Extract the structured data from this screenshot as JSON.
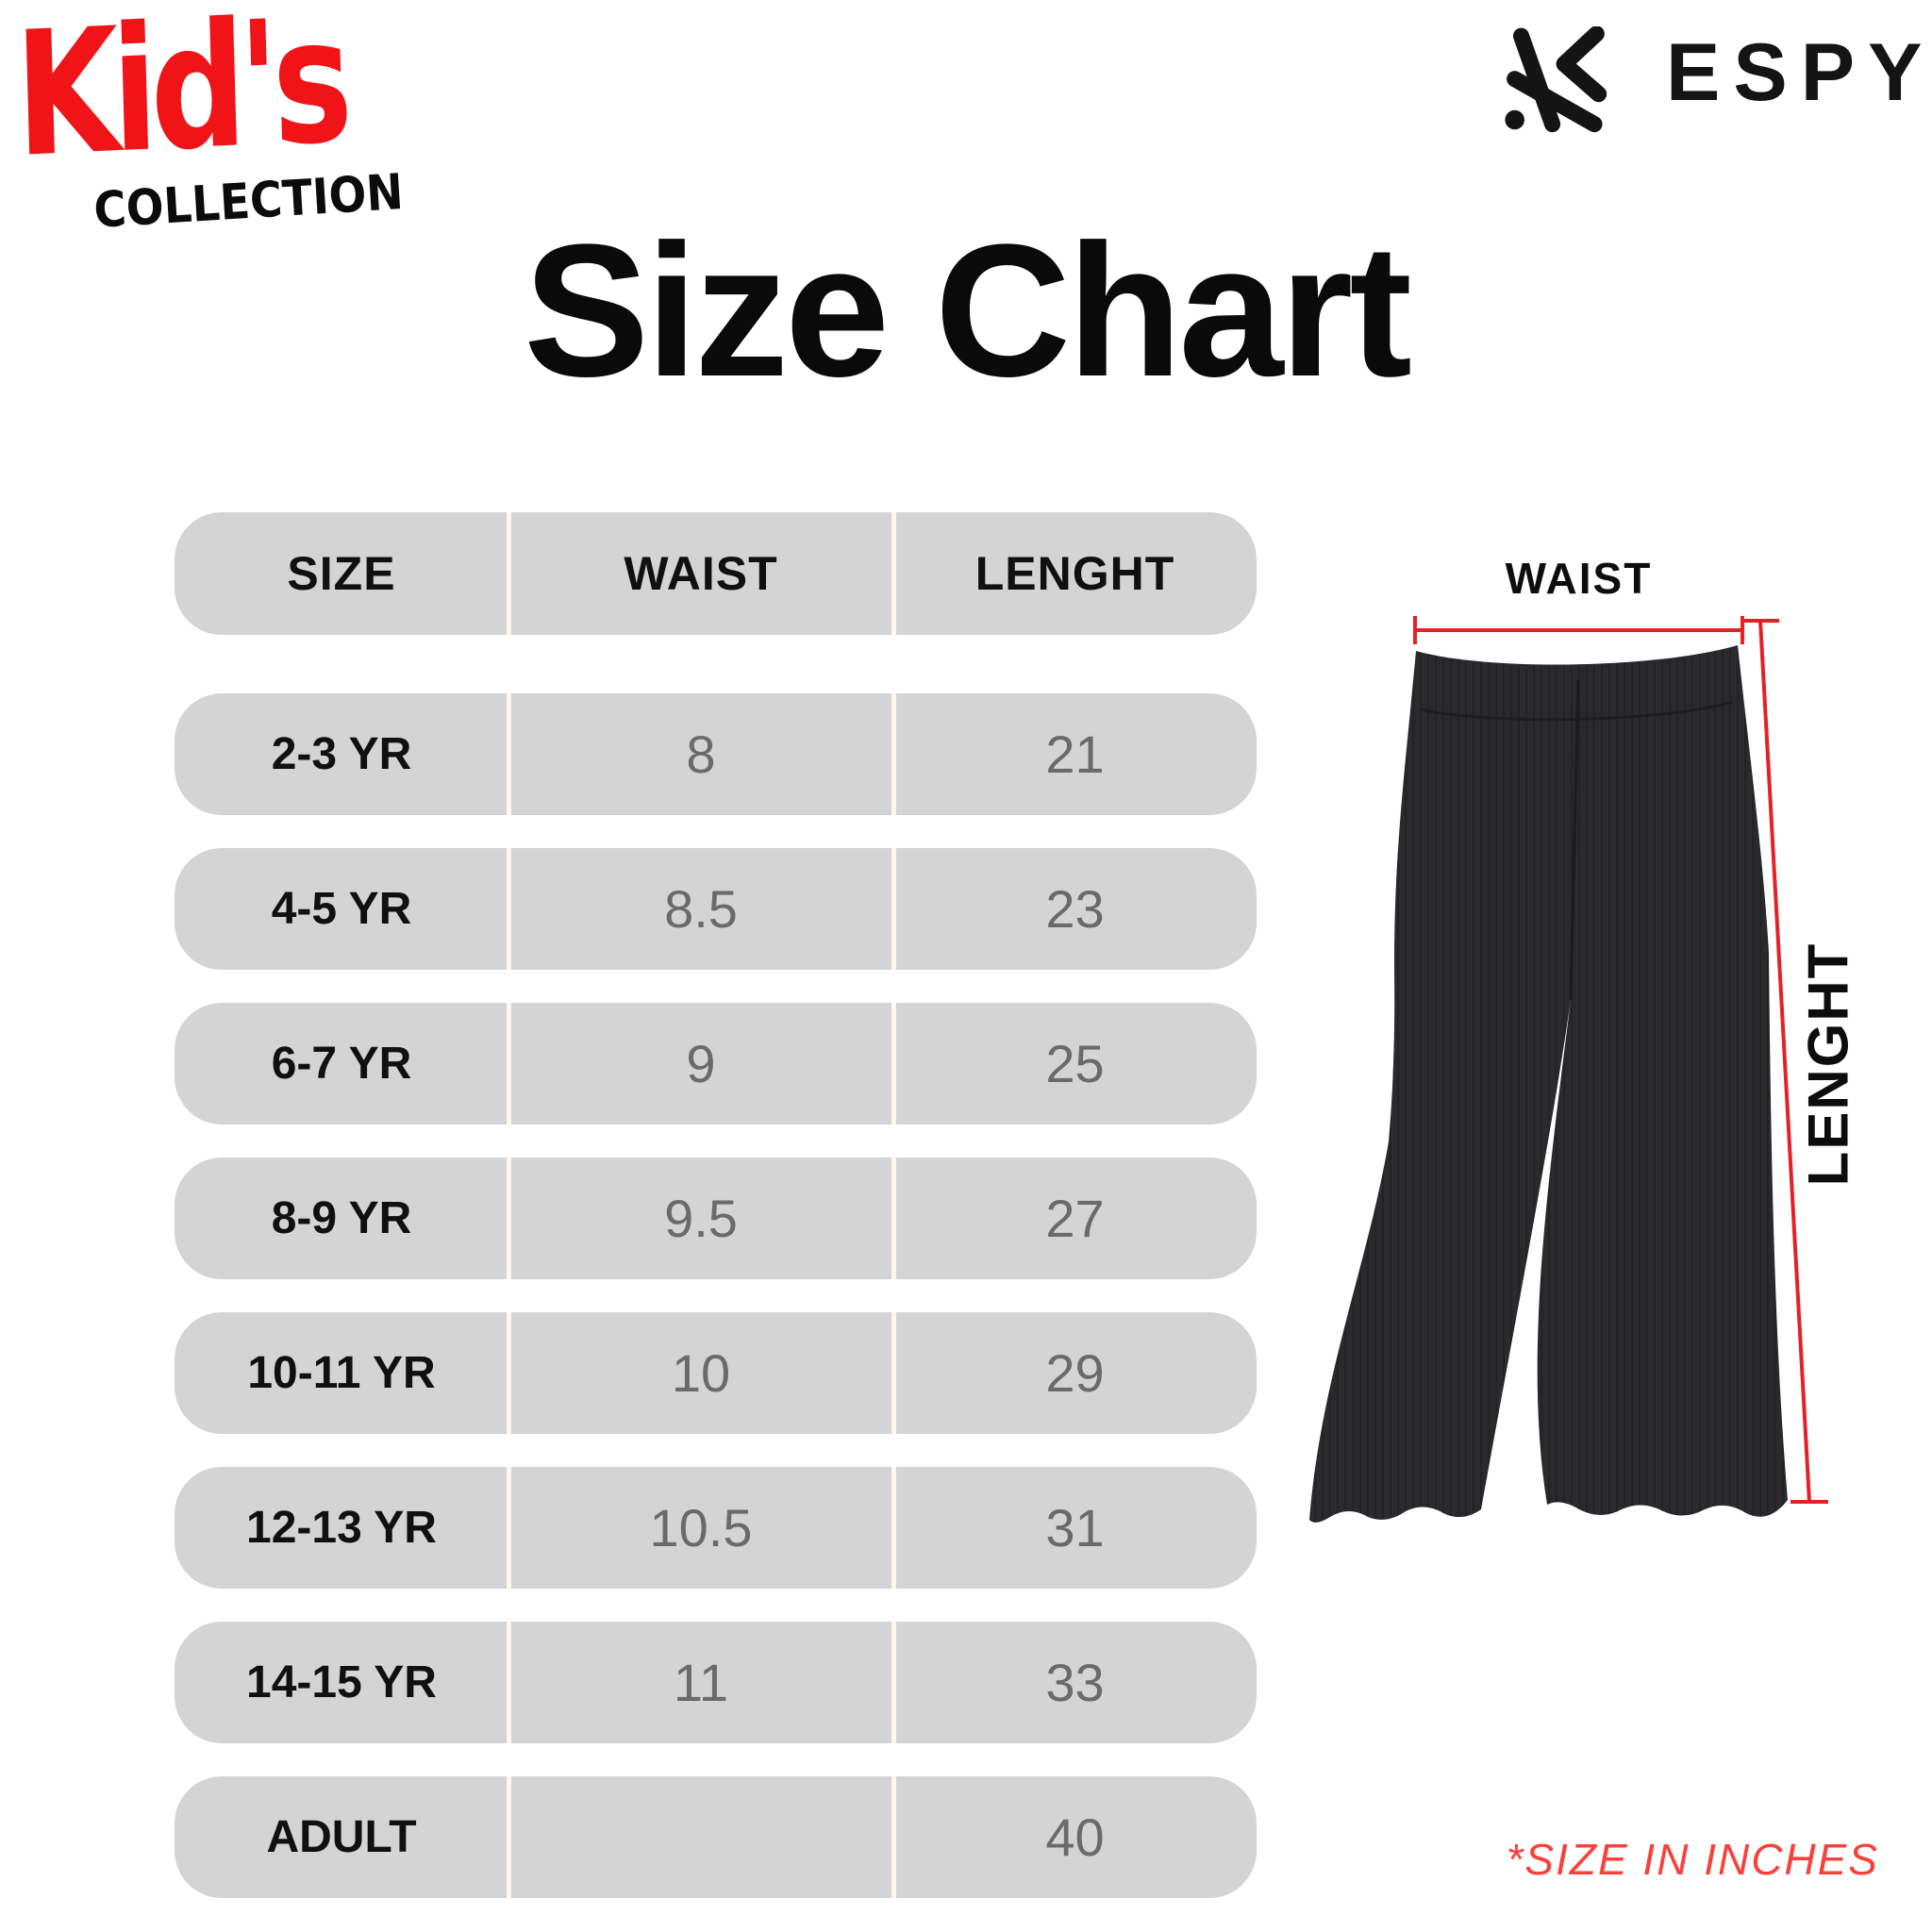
{
  "brand": {
    "kids_logo": "Kid's",
    "kids_sub": "COLLECTION",
    "espy_wordmark": "ESPY"
  },
  "page_title": "Size Chart",
  "size_table": {
    "columns": [
      "SIZE",
      "WAIST",
      "LENGHT"
    ],
    "rows": [
      {
        "size": "2-3 YR",
        "waist": "8",
        "lenght": "21"
      },
      {
        "size": "4-5 YR",
        "waist": "8.5",
        "lenght": "23"
      },
      {
        "size": "6-7 YR",
        "waist": "9",
        "lenght": "25"
      },
      {
        "size": "8-9 YR",
        "waist": "9.5",
        "lenght": "27"
      },
      {
        "size": "10-11 YR",
        "waist": "10",
        "lenght": "29"
      },
      {
        "size": "12-13 YR",
        "waist": "10.5",
        "lenght": "31"
      },
      {
        "size": "14-15 YR",
        "waist": "11",
        "lenght": "33"
      },
      {
        "size": "ADULT",
        "waist": "",
        "lenght": "40"
      }
    ]
  },
  "diagram": {
    "waist_label": "WAIST",
    "length_label": "LENGHT",
    "garment": "black-flare-pants-illustration"
  },
  "footnote": "*SIZE IN INCHES",
  "icons": [
    "espy-brand-icon"
  ],
  "colors": {
    "logo_red": "#f01418",
    "measure_red": "#e32126",
    "note_red": "#f7423c",
    "row_gray": "#d4d4d4",
    "value_gray": "#6a6a6a",
    "divider_cream": "#fcf8ea",
    "text_black": "#101010",
    "pants_dark": "#2a2a2d"
  }
}
